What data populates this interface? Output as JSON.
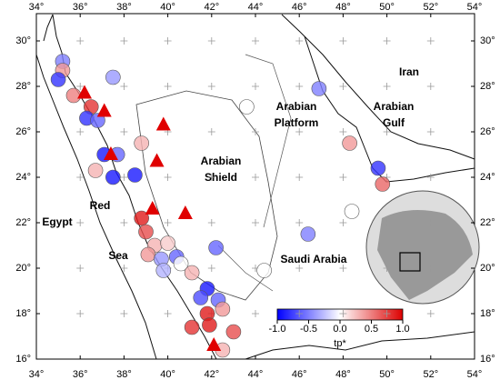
{
  "map": {
    "xlim": [
      34,
      54
    ],
    "ylim": [
      16,
      31.2
    ],
    "xticks": [
      {
        "value": 34,
        "label": "34°"
      },
      {
        "value": 36,
        "label": "36°"
      },
      {
        "value": 38,
        "label": "38°"
      },
      {
        "value": 40,
        "label": "40°"
      },
      {
        "value": 42,
        "label": "42°"
      },
      {
        "value": 44,
        "label": "44°"
      },
      {
        "value": 46,
        "label": "46°"
      },
      {
        "value": 48,
        "label": "48°"
      },
      {
        "value": 50,
        "label": "50°"
      },
      {
        "value": 52,
        "label": "52°"
      },
      {
        "value": 54,
        "label": "54°"
      }
    ],
    "yticks": [
      {
        "value": 16,
        "label": "16°"
      },
      {
        "value": 18,
        "label": "18°"
      },
      {
        "value": 20,
        "label": "20°"
      },
      {
        "value": 22,
        "label": "22°"
      },
      {
        "value": 24,
        "label": "24°"
      },
      {
        "value": 26,
        "label": "26°"
      },
      {
        "value": 28,
        "label": "28°"
      },
      {
        "value": 30,
        "label": "30°"
      }
    ],
    "regions": [
      "Egypt",
      "Red",
      "Sea",
      "Arabian",
      "Shield",
      "Arabian",
      "Platform",
      "Arabian",
      "Gulf",
      "Iran",
      "Saudi Arabia"
    ],
    "stations": [
      {
        "lon": 35.2,
        "lat": 29.1,
        "tp": -0.5
      },
      {
        "lon": 35.2,
        "lat": 28.7,
        "tp": 0.4
      },
      {
        "lon": 35.0,
        "lat": 28.3,
        "tp": -0.8
      },
      {
        "lon": 37.5,
        "lat": 28.4,
        "tp": -0.4
      },
      {
        "lon": 35.7,
        "lat": 27.6,
        "tp": 0.5
      },
      {
        "lon": 36.5,
        "lat": 27.1,
        "tp": 0.8
      },
      {
        "lon": 36.3,
        "lat": 26.6,
        "tp": -0.8
      },
      {
        "lon": 36.8,
        "lat": 26.5,
        "tp": -0.6
      },
      {
        "lon": 46.9,
        "lat": 27.9,
        "tp": -0.5
      },
      {
        "lon": 43.6,
        "lat": 27.1,
        "tp": 0.0
      },
      {
        "lon": 48.3,
        "lat": 25.5,
        "tp": 0.4
      },
      {
        "lon": 49.6,
        "lat": 24.4,
        "tp": -0.8
      },
      {
        "lon": 49.8,
        "lat": 23.7,
        "tp": 0.6
      },
      {
        "lon": 38.8,
        "lat": 25.5,
        "tp": 0.3
      },
      {
        "lon": 37.7,
        "lat": 25.0,
        "tp": -0.6
      },
      {
        "lon": 37.1,
        "lat": 25.0,
        "tp": -0.9
      },
      {
        "lon": 38.5,
        "lat": 24.1,
        "tp": -0.9
      },
      {
        "lon": 37.5,
        "lat": 24.0,
        "tp": -0.9
      },
      {
        "lon": 36.7,
        "lat": 24.3,
        "tp": 0.3
      },
      {
        "lon": 48.4,
        "lat": 22.5,
        "tp": 0.0
      },
      {
        "lon": 46.4,
        "lat": 21.5,
        "tp": -0.5
      },
      {
        "lon": 38.8,
        "lat": 22.2,
        "tp": 0.9
      },
      {
        "lon": 39.0,
        "lat": 21.6,
        "tp": 0.7
      },
      {
        "lon": 39.4,
        "lat": 21.0,
        "tp": 0.3
      },
      {
        "lon": 40.0,
        "lat": 21.1,
        "tp": 0.2
      },
      {
        "lon": 39.1,
        "lat": 20.6,
        "tp": 0.4
      },
      {
        "lon": 39.7,
        "lat": 20.4,
        "tp": -0.4
      },
      {
        "lon": 40.4,
        "lat": 20.5,
        "tp": -0.6
      },
      {
        "lon": 42.2,
        "lat": 20.9,
        "tp": -0.6
      },
      {
        "lon": 39.8,
        "lat": 19.9,
        "tp": -0.3
      },
      {
        "lon": 40.6,
        "lat": 20.2,
        "tp": 0.0
      },
      {
        "lon": 41.1,
        "lat": 19.8,
        "tp": 0.3
      },
      {
        "lon": 44.4,
        "lat": 19.9,
        "tp": 0.0
      },
      {
        "lon": 41.8,
        "lat": 19.1,
        "tp": -0.9
      },
      {
        "lon": 41.5,
        "lat": 18.7,
        "tp": -0.7
      },
      {
        "lon": 42.3,
        "lat": 18.6,
        "tp": -0.6
      },
      {
        "lon": 41.8,
        "lat": 18.0,
        "tp": 0.9
      },
      {
        "lon": 42.5,
        "lat": 18.2,
        "tp": 0.4
      },
      {
        "lon": 41.1,
        "lat": 17.4,
        "tp": 0.8
      },
      {
        "lon": 41.9,
        "lat": 17.5,
        "tp": 0.9
      },
      {
        "lon": 43.0,
        "lat": 17.2,
        "tp": 0.7
      },
      {
        "lon": 42.5,
        "lat": 16.4,
        "tp": 0.3
      }
    ],
    "volcanoes": [
      {
        "lon": 36.2,
        "lat": 27.7
      },
      {
        "lon": 37.1,
        "lat": 26.9
      },
      {
        "lon": 39.8,
        "lat": 26.3
      },
      {
        "lon": 39.5,
        "lat": 24.7
      },
      {
        "lon": 37.4,
        "lat": 25.0
      },
      {
        "lon": 39.3,
        "lat": 22.6
      },
      {
        "lon": 40.8,
        "lat": 22.4
      },
      {
        "lon": 42.1,
        "lat": 16.6
      }
    ],
    "colorbar": {
      "title": "tp*",
      "clim": [
        -1,
        1
      ],
      "ticks": [
        {
          "value": -1,
          "label": "-1.0"
        },
        {
          "value": -0.5,
          "label": "-0.5"
        },
        {
          "value": 0,
          "label": "0.0"
        },
        {
          "value": 0.5,
          "label": "0.5"
        },
        {
          "value": 1,
          "label": "1.0"
        }
      ]
    }
  }
}
